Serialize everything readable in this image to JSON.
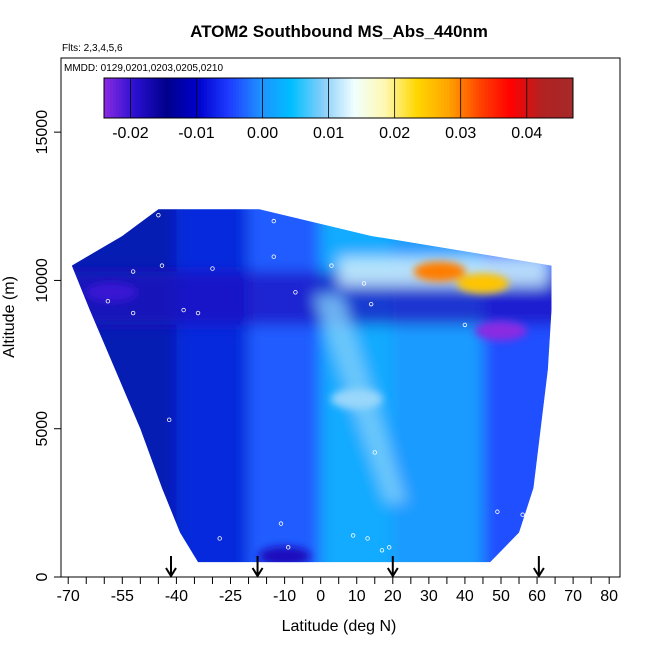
{
  "chart_data": {
    "type": "heatmap",
    "title": "ATOM2 Southbound MS_Abs_440nm",
    "subtitle_flights": "Flts: 2,3,4,5,6",
    "subtitle_dates": "MMDD: 0129,0201,0203,0205,0210",
    "xlabel": "Latitude (deg N)",
    "ylabel": "Altitude (m)",
    "xlim": [
      -72,
      83
    ],
    "ylim": [
      0,
      17500
    ],
    "x_ticks": [
      -70,
      -55,
      -40,
      -25,
      -10,
      0,
      10,
      20,
      30,
      40,
      50,
      60,
      70,
      80
    ],
    "x_tick_labels": [
      "-70",
      "-55",
      "-40",
      "-25",
      "-10",
      "0",
      "10",
      "20",
      "30",
      "40",
      "50",
      "60",
      "70",
      "80"
    ],
    "x_minor_ticks": [
      -65,
      -60,
      -50,
      -45,
      -35,
      -30,
      -20,
      -15,
      -5,
      5,
      15,
      25,
      35,
      45,
      55,
      65,
      75
    ],
    "y_ticks": [
      0,
      5000,
      10000,
      15000
    ],
    "y_tick_labels": [
      "0",
      "5000",
      "10000",
      "15000"
    ],
    "colorbar": {
      "range": [
        -0.024,
        0.047
      ],
      "ticks": [
        -0.02,
        -0.01,
        0.0,
        0.01,
        0.02,
        0.03,
        0.04
      ],
      "tick_labels": [
        "-0.02",
        "-0.01",
        "0.00",
        "0.01",
        "0.02",
        "0.03",
        "0.04"
      ],
      "colors": [
        "#8a2be2",
        "#2a0fd0",
        "#00008b",
        "#0000cd",
        "#1e3cff",
        "#1e90ff",
        "#00bfff",
        "#87cefa",
        "#f0ffff",
        "#fff8b0",
        "#ffd700",
        "#ffa500",
        "#ff4500",
        "#ff0000",
        "#b22222",
        "#a52a2a"
      ]
    },
    "curtain_envelope": [
      {
        "alt": 500,
        "lat_min": -34,
        "lat_max": 47
      },
      {
        "alt": 1500,
        "lat_min": -39,
        "lat_max": 55
      },
      {
        "alt": 3000,
        "lat_min": -44,
        "lat_max": 59
      },
      {
        "alt": 5000,
        "lat_min": -50,
        "lat_max": 61
      },
      {
        "alt": 7000,
        "lat_min": -57,
        "lat_max": 63
      },
      {
        "alt": 9000,
        "lat_min": -64,
        "lat_max": 64
      },
      {
        "alt": 10500,
        "lat_min": -69,
        "lat_max": 64
      },
      {
        "alt": 11500,
        "lat_min": -55,
        "lat_max": 14
      },
      {
        "alt": 12400,
        "lat_min": -45,
        "lat_max": -17
      }
    ],
    "features": [
      {
        "lat": 33,
        "alt": 10300,
        "value": 0.03
      },
      {
        "lat": 45,
        "alt": 9900,
        "value": 0.025
      },
      {
        "lat": 50,
        "alt": 8300,
        "value": -0.024
      },
      {
        "lat": -58,
        "alt": 9600,
        "value": -0.02
      },
      {
        "lat": -10,
        "alt": 700,
        "value": -0.018
      },
      {
        "lat": 10,
        "alt": 6000,
        "value": 0.01
      }
    ],
    "sample_points": [
      [
        -45,
        12200
      ],
      [
        -13,
        12000
      ],
      [
        -13,
        10800
      ],
      [
        -44,
        10500
      ],
      [
        -30,
        10400
      ],
      [
        -52,
        10300
      ],
      [
        3,
        10500
      ],
      [
        -69,
        10100
      ],
      [
        -68,
        9700
      ],
      [
        -59,
        9300
      ],
      [
        -52,
        8900
      ],
      [
        -66,
        9100
      ],
      [
        -38,
        9000
      ],
      [
        -34,
        8900
      ],
      [
        -7,
        9600
      ],
      [
        12,
        9900
      ],
      [
        14,
        9200
      ],
      [
        40,
        8500
      ],
      [
        -62,
        7300
      ],
      [
        -42,
        5300
      ],
      [
        15,
        4200
      ],
      [
        -28,
        1300
      ],
      [
        -9,
        1000
      ],
      [
        -11,
        1800
      ],
      [
        9,
        1400
      ],
      [
        13,
        1300
      ],
      [
        17,
        900
      ],
      [
        19,
        1000
      ],
      [
        49,
        2200
      ],
      [
        56,
        2100
      ]
    ],
    "arrow_latitudes": [
      -41.5,
      -17.5,
      20,
      60.5
    ]
  }
}
